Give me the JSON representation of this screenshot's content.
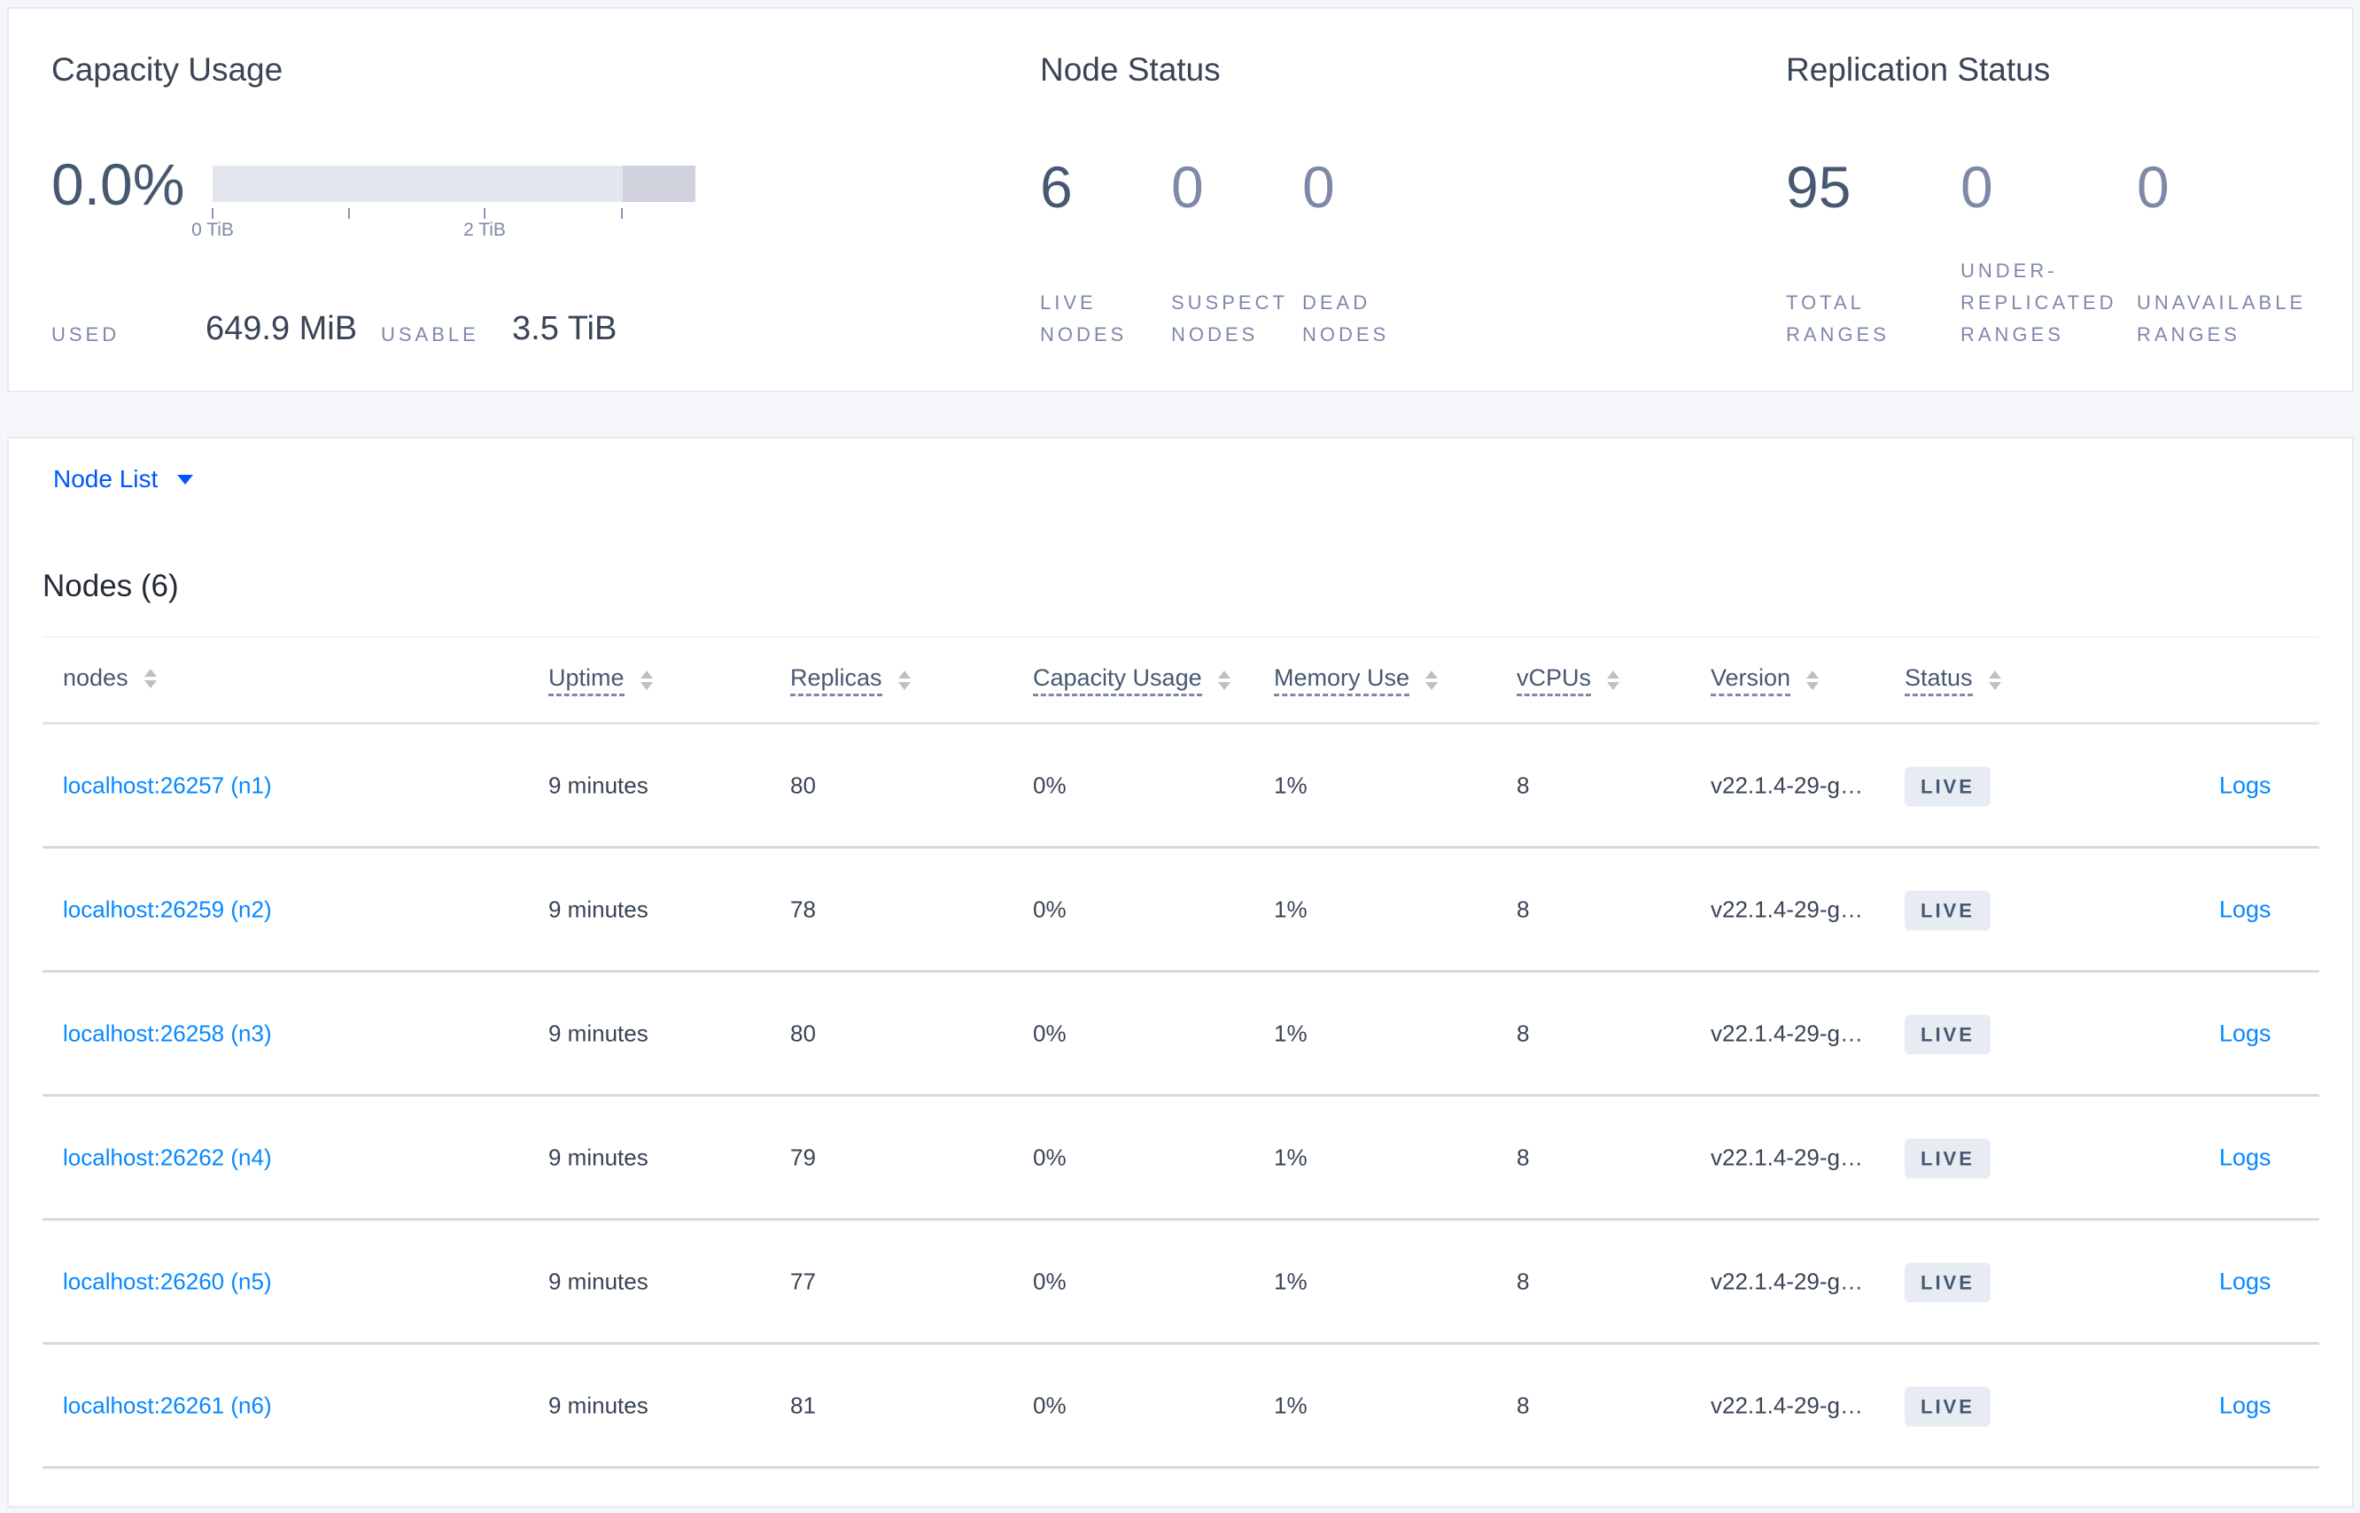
{
  "capacity": {
    "title": "Capacity Usage",
    "percent": "0.0%",
    "used_fraction": 0.0002,
    "usable_fraction_of_axis": 0.85,
    "axis_labels": [
      "0 TiB",
      "2 TiB"
    ],
    "used_label": "USED",
    "used_value": "649.9 MiB",
    "usable_label": "USABLE",
    "usable_value": "3.5 TiB"
  },
  "node_status": {
    "title": "Node Status",
    "stats": [
      {
        "value": "6",
        "l1": "LIVE",
        "l2": "NODES"
      },
      {
        "value": "0",
        "l1": "SUSPECT",
        "l2": "NODES"
      },
      {
        "value": "0",
        "l1": "DEAD",
        "l2": "NODES"
      }
    ]
  },
  "replication": {
    "title": "Replication Status",
    "stats": [
      {
        "value": "95",
        "l0": "",
        "l1": "TOTAL",
        "l2": "RANGES"
      },
      {
        "value": "0",
        "l0": "UNDER-",
        "l1": "REPLICATED",
        "l2": "RANGES"
      },
      {
        "value": "0",
        "l0": "",
        "l1": "UNAVAILABLE",
        "l2": "RANGES"
      }
    ]
  },
  "view_selector": {
    "label": "Node List"
  },
  "table": {
    "title": "Nodes (6)",
    "columns": [
      "nodes",
      "Uptime",
      "Replicas",
      "Capacity Usage",
      "Memory Use",
      "vCPUs",
      "Version",
      "Status"
    ],
    "logs_label": "Logs",
    "rows": [
      {
        "node": "localhost:26257 (n1)",
        "uptime": "9 minutes",
        "replicas": "80",
        "capacity": "0%",
        "memory": "1%",
        "vcpus": "8",
        "version": "v22.1.4-29-g…",
        "status": "LIVE"
      },
      {
        "node": "localhost:26259 (n2)",
        "uptime": "9 minutes",
        "replicas": "78",
        "capacity": "0%",
        "memory": "1%",
        "vcpus": "8",
        "version": "v22.1.4-29-g…",
        "status": "LIVE"
      },
      {
        "node": "localhost:26258 (n3)",
        "uptime": "9 minutes",
        "replicas": "80",
        "capacity": "0%",
        "memory": "1%",
        "vcpus": "8",
        "version": "v22.1.4-29-g…",
        "status": "LIVE"
      },
      {
        "node": "localhost:26262 (n4)",
        "uptime": "9 minutes",
        "replicas": "79",
        "capacity": "0%",
        "memory": "1%",
        "vcpus": "8",
        "version": "v22.1.4-29-g…",
        "status": "LIVE"
      },
      {
        "node": "localhost:26260 (n5)",
        "uptime": "9 minutes",
        "replicas": "77",
        "capacity": "0%",
        "memory": "1%",
        "vcpus": "8",
        "version": "v22.1.4-29-g…",
        "status": "LIVE"
      },
      {
        "node": "localhost:26261 (n6)",
        "uptime": "9 minutes",
        "replicas": "81",
        "capacity": "0%",
        "memory": "1%",
        "vcpus": "8",
        "version": "v22.1.4-29-g…",
        "status": "LIVE"
      }
    ]
  }
}
